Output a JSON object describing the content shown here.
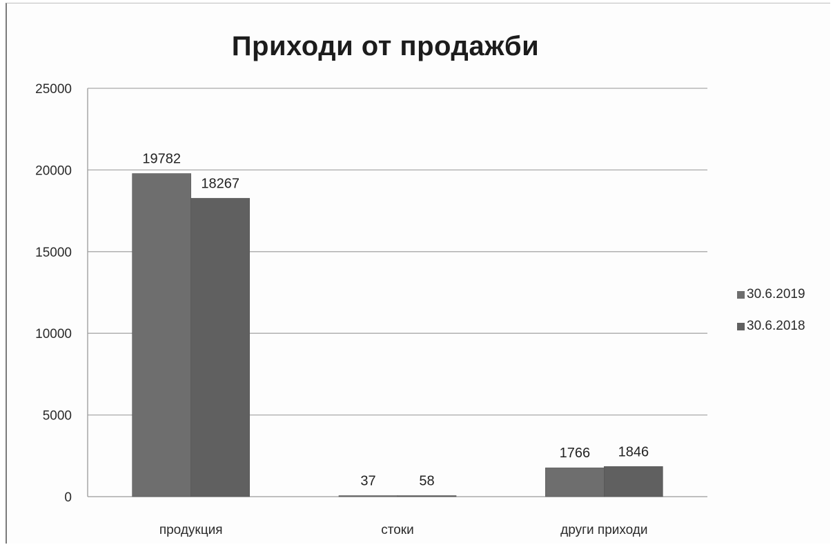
{
  "chart_data": {
    "type": "bar",
    "title": "Приходи от продажби",
    "categories": [
      "продукция",
      "стоки",
      "други приходи"
    ],
    "series": [
      {
        "name": "30.6.2019",
        "values": [
          19782,
          37,
          1766
        ],
        "color": "#6e6e6e"
      },
      {
        "name": "30.6.2018",
        "values": [
          18267,
          58,
          1846
        ],
        "color": "#606060"
      }
    ],
    "ylim": [
      0,
      25000
    ],
    "yticks": [
      "25000",
      "20000",
      "15000",
      "10000",
      "5000",
      "0"
    ],
    "grid": true,
    "legend": "right"
  }
}
